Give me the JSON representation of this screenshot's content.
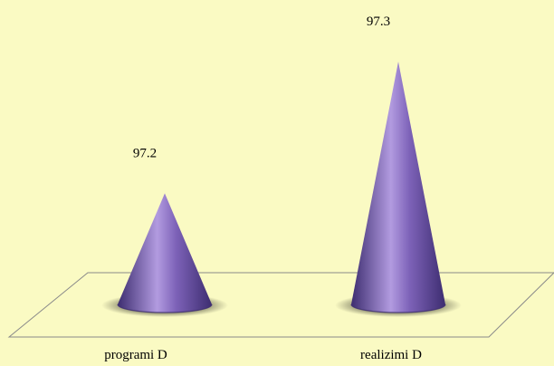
{
  "chart_data": {
    "type": "bar",
    "mark_shape": "cone",
    "categories": [
      "programi D",
      "realizimi D"
    ],
    "values": [
      97.2,
      97.3
    ],
    "data_labels": [
      "97.2",
      "97.3"
    ],
    "title": "",
    "xlabel": "",
    "ylabel": "",
    "grid": false,
    "legend": "none",
    "colors": {
      "background": "#fafac3",
      "cone_dark": "#3d2d70",
      "cone_mid": "#7d62b8",
      "cone_light": "#b29be0",
      "floor_stroke": "#8a8a8a",
      "shadow": "#000000"
    }
  }
}
